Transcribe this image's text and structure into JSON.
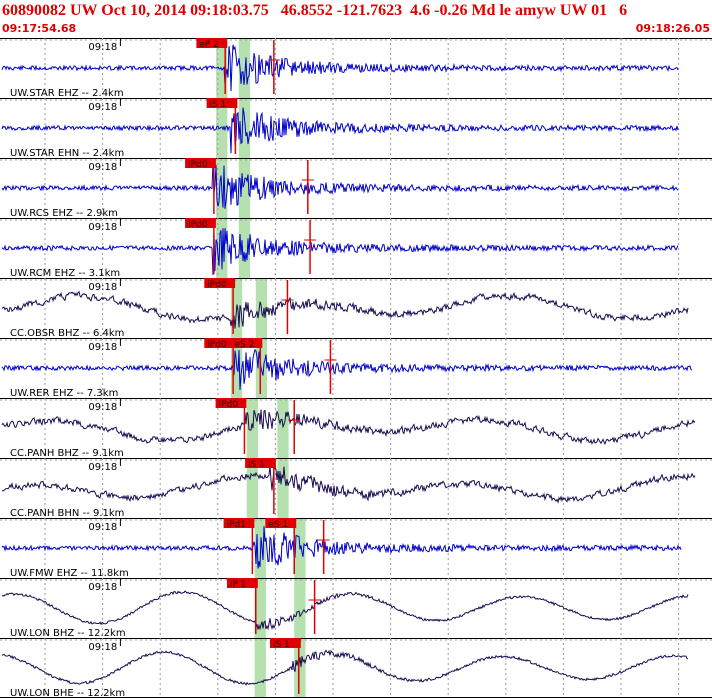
{
  "header": {
    "title": "60890082 UW Oct 10, 2014 09:18:03.75   46.8552 -121.7623  4.6 -0.26 Md le amyw UW 01   6",
    "start_time": "09:17:54.68",
    "end_time": "09:18:26.05"
  },
  "colors": {
    "title_red": "#e00000",
    "pick_red": "#e00000",
    "trace_blue": "#0000cc",
    "trace_purple": "#1a0a50",
    "window_green": "#a8dca0",
    "grid_dash": "#999999"
  },
  "chart_data": {
    "type": "line",
    "title": "60890082 UW Oct 10, 2014 09:18:03.75   46.8552 -121.7623  4.6 -0.26 Md le amyw UW 01   6",
    "x_range": [
      "09:17:54.68",
      "09:18:26.05"
    ],
    "x_tick_label": "09:18",
    "x_tick_seconds": 5.32,
    "duration_seconds": 31.37,
    "grid": true,
    "traces": [
      {
        "label": "UW.STAR EHZ -- 2.4km",
        "color_key": "trace_blue",
        "kind": "sp",
        "seed": 11,
        "end_frac": 0.955,
        "onset_s": 9.9,
        "picks": [
          {
            "label": "eP 2",
            "t": 9.95
          },
          {
            "label": "",
            "t": 12.1
          }
        ],
        "windows": [
          [
            9.55,
            10.05
          ],
          [
            10.55,
            11.05
          ]
        ]
      },
      {
        "label": "UW.STAR EHN -- 2.4km",
        "color_key": "trace_blue",
        "kind": "sp",
        "seed": 12,
        "end_frac": 0.955,
        "onset_s": 10.2,
        "picks": [
          {
            "label": "iS 1",
            "t": 10.4
          }
        ],
        "windows": [
          [
            9.55,
            10.05
          ],
          [
            10.55,
            11.05
          ]
        ]
      },
      {
        "label": "UW.RCS EHZ -- 2.9km",
        "color_key": "trace_blue",
        "kind": "sp",
        "seed": 13,
        "end_frac": 0.955,
        "onset_s": 9.4,
        "picks": [
          {
            "label": "iPd0",
            "t": 9.45
          },
          {
            "label": "",
            "t": 13.6
          }
        ],
        "windows": [
          [
            9.55,
            10.05
          ],
          [
            10.55,
            11.05
          ]
        ]
      },
      {
        "label": "UW.RCM EHZ -- 3.1km",
        "color_key": "trace_blue",
        "kind": "sp",
        "seed": 14,
        "end_frac": 0.955,
        "onset_s": 9.4,
        "picks": [
          {
            "label": "iPd0",
            "t": 9.45
          },
          {
            "label": "",
            "t": 13.7
          }
        ],
        "windows": [
          [
            9.55,
            10.05
          ],
          [
            10.55,
            11.05
          ]
        ]
      },
      {
        "label": "CC.OBSR BHZ -- 6.4km",
        "color_key": "trace_purple",
        "kind": "bb",
        "seed": 21,
        "end_frac": 0.97,
        "onset_s": 10.2,
        "picks": [
          {
            "label": "iPd0",
            "t": 10.3
          },
          {
            "label": "",
            "t": 12.7
          }
        ],
        "windows": [
          [
            10.2,
            10.7
          ],
          [
            11.3,
            11.8
          ]
        ]
      },
      {
        "label": "UW.RER EHZ -- 7.3km",
        "color_key": "trace_blue",
        "kind": "sp",
        "seed": 15,
        "end_frac": 0.975,
        "onset_s": 10.3,
        "picks": [
          {
            "label": "iPd0",
            "t": 10.3
          },
          {
            "label": "eS 2",
            "t": 11.5
          },
          {
            "label": "",
            "t": 14.6
          }
        ],
        "windows": [
          [
            10.2,
            10.7
          ],
          [
            11.3,
            11.8
          ]
        ]
      },
      {
        "label": "CC.PANH BHZ -- 9.1km",
        "color_key": "trace_purple",
        "kind": "bb",
        "seed": 22,
        "end_frac": 0.98,
        "onset_s": 10.8,
        "picks": [
          {
            "label": "iPd0",
            "t": 10.8
          },
          {
            "label": "",
            "t": 13.0
          }
        ],
        "windows": [
          [
            10.9,
            11.4
          ],
          [
            12.25,
            12.75
          ]
        ]
      },
      {
        "label": "CC.PANH BHN -- 9.1km",
        "color_key": "trace_purple",
        "kind": "bb",
        "seed": 23,
        "end_frac": 0.98,
        "onset_s": 11.9,
        "picks": [
          {
            "label": "iS 1",
            "t": 12.1
          }
        ],
        "windows": [
          [
            10.9,
            11.4
          ],
          [
            12.25,
            12.75
          ]
        ]
      },
      {
        "label": "UW.FMW EHZ -- 11.8km",
        "color_key": "trace_blue",
        "kind": "sp",
        "seed": 16,
        "end_frac": 0.96,
        "onset_s": 11.2,
        "picks": [
          {
            "label": "iPd1",
            "t": 11.15
          },
          {
            "label": "eS 1",
            "t": 13.0
          },
          {
            "label": "",
            "t": 14.3
          }
        ],
        "windows": [
          [
            11.25,
            11.75
          ],
          [
            13.0,
            13.5
          ]
        ]
      },
      {
        "label": "UW.LON BHZ -- 12.2km",
        "color_key": "trace_purple",
        "kind": "wave",
        "seed": 24,
        "end_frac": 0.97,
        "onset_s": 11.3,
        "picks": [
          {
            "label": "iP 1",
            "t": 11.3
          },
          {
            "label": "",
            "t": 13.9
          }
        ],
        "windows": [
          [
            11.25,
            11.75
          ],
          [
            13.0,
            13.5
          ]
        ]
      },
      {
        "label": "UW.LON BHE -- 12.2km",
        "color_key": "trace_purple",
        "kind": "wave",
        "seed": 25,
        "end_frac": 0.97,
        "onset_s": 12.9,
        "picks": [
          {
            "label": "iS 1",
            "t": 13.2
          }
        ],
        "windows": [
          [
            11.25,
            11.75
          ],
          [
            13.0,
            13.5
          ]
        ]
      }
    ]
  }
}
